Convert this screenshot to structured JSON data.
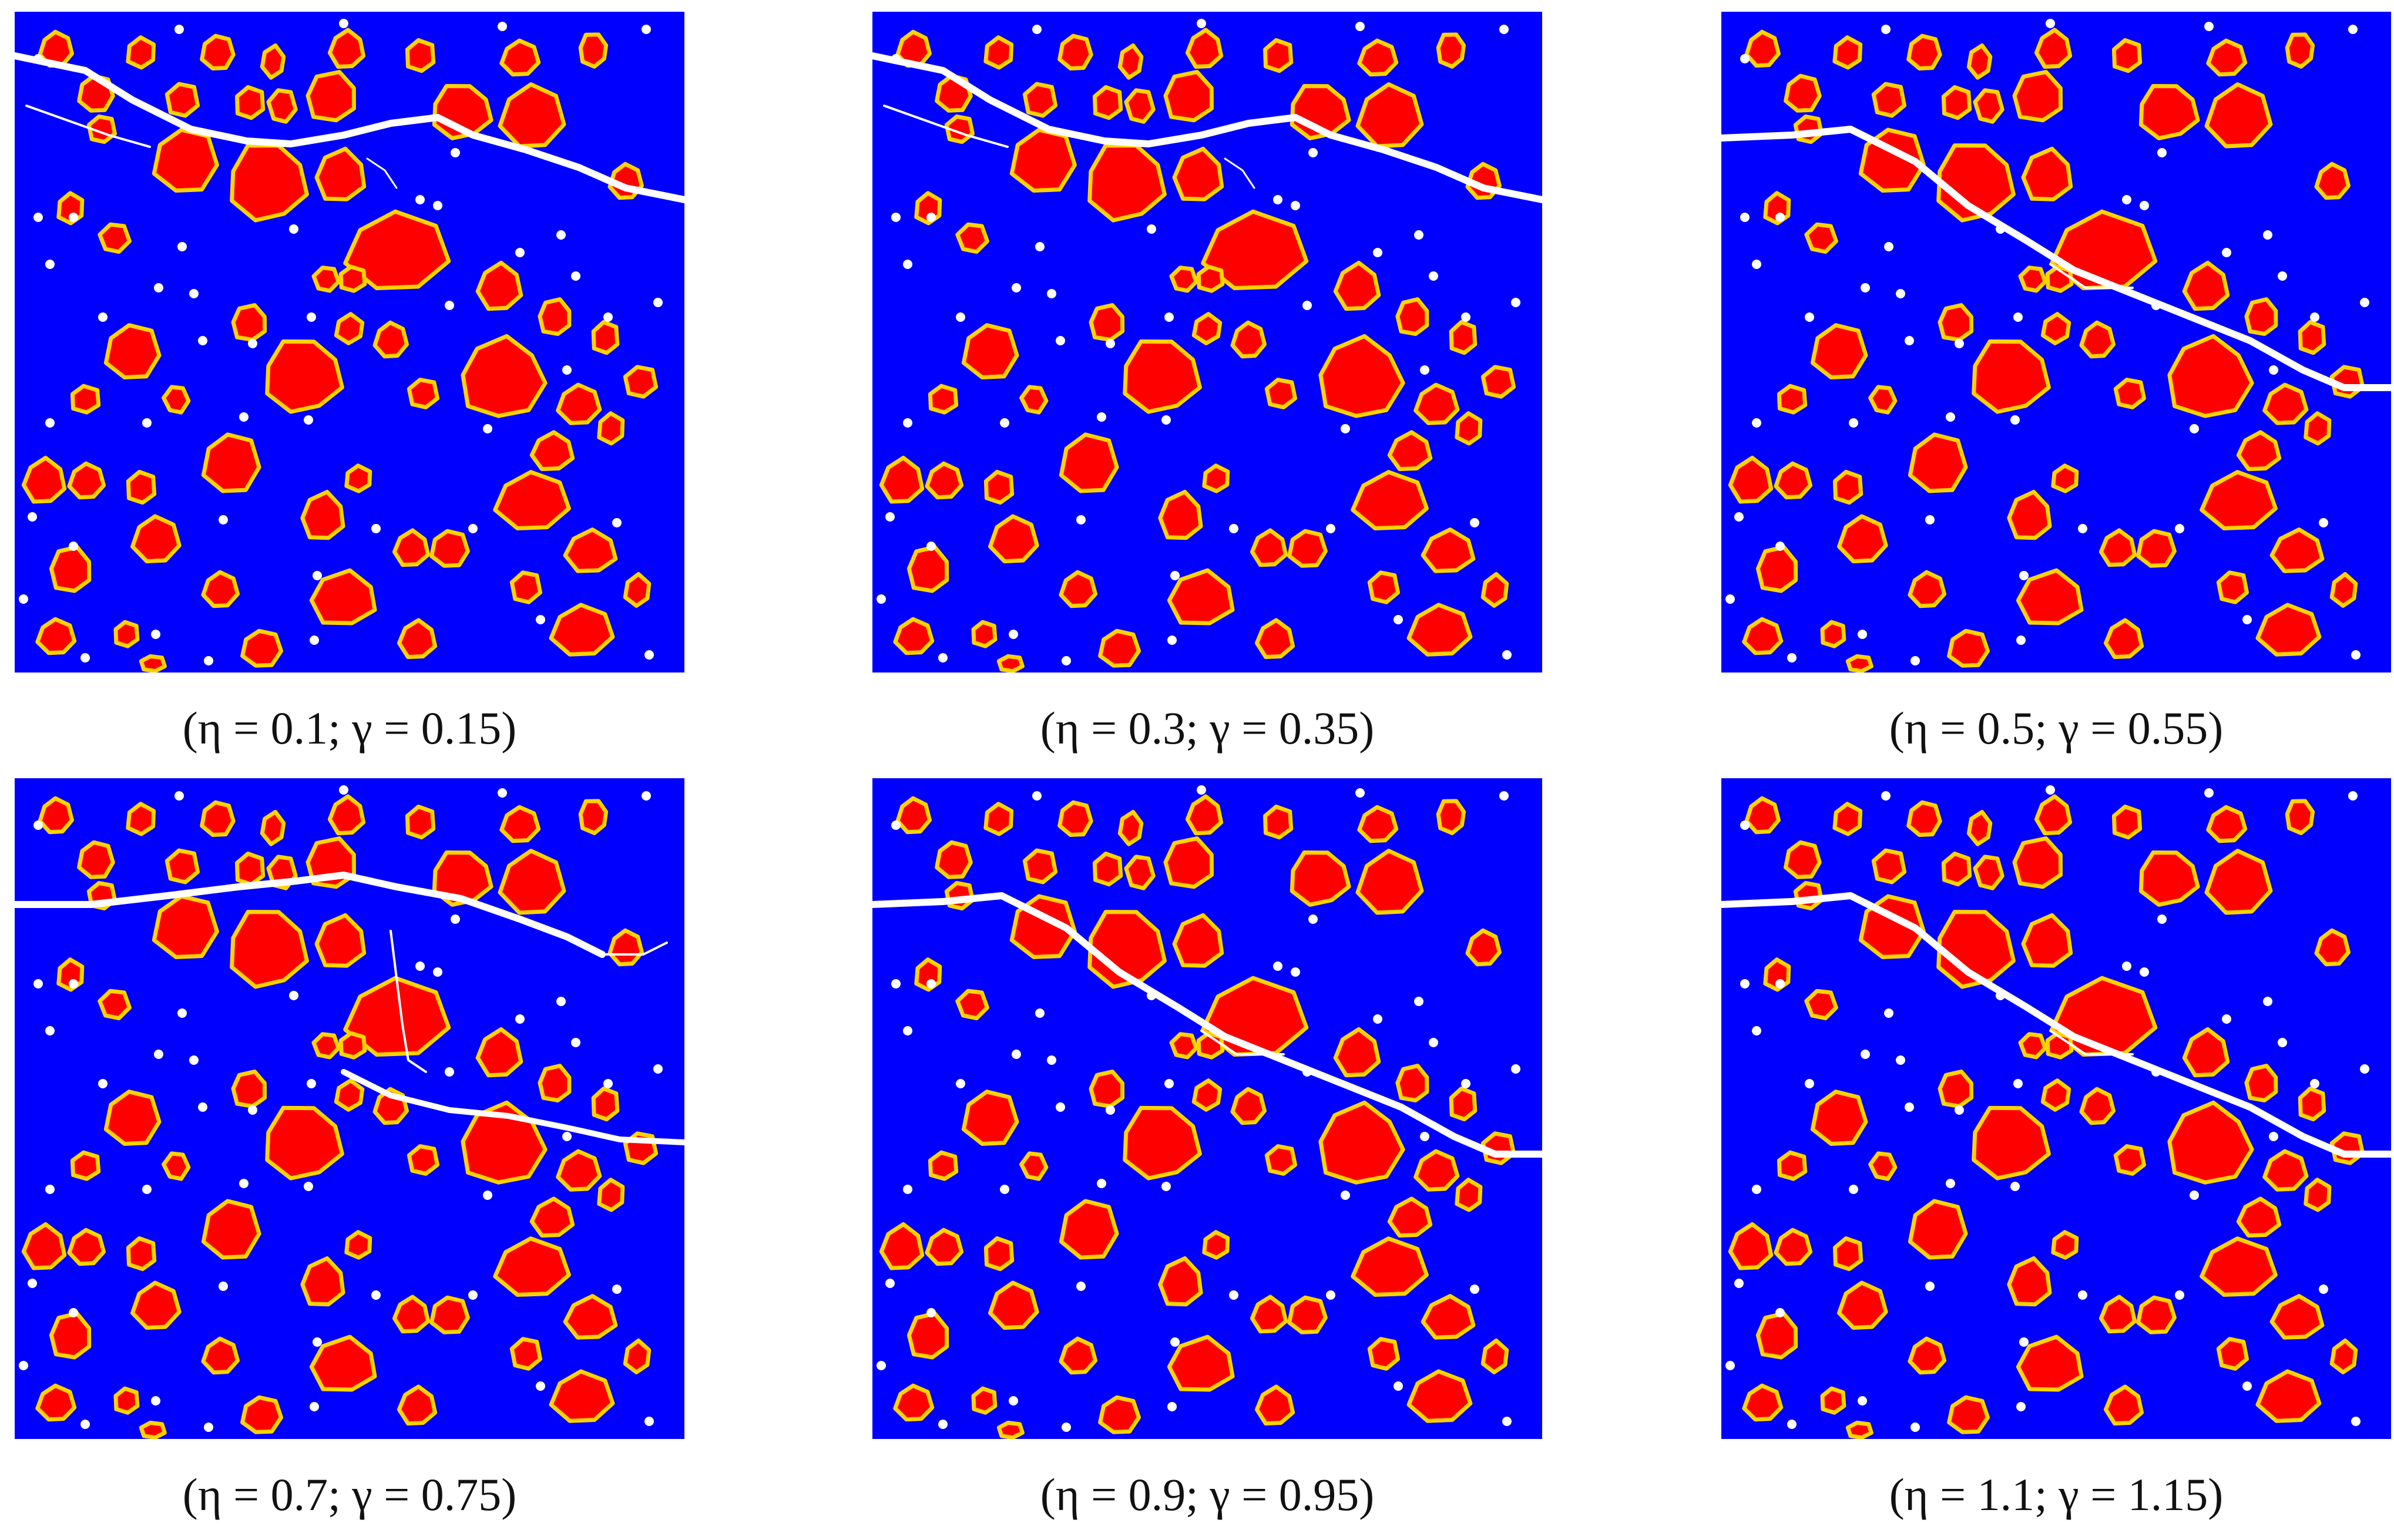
{
  "colors": {
    "matrix": "#0000ff",
    "aggregate": "#ff0000",
    "itz": "#ffd200",
    "pore_and_crack": "#ffffff"
  },
  "panels": [
    {
      "id": "p1",
      "eta": "0.1",
      "gamma": "0.15",
      "crack_pattern": "upper-horizontal-band"
    },
    {
      "id": "p2",
      "eta": "0.3",
      "gamma": "0.35",
      "crack_pattern": "upper-horizontal-band"
    },
    {
      "id": "p3",
      "eta": "0.5",
      "gamma": "0.55",
      "crack_pattern": "descending-diagonal"
    },
    {
      "id": "p4",
      "eta": "0.7",
      "gamma": "0.75",
      "crack_pattern": "branched"
    },
    {
      "id": "p5",
      "eta": "0.9",
      "gamma": "0.95",
      "crack_pattern": "descending-diagonal"
    },
    {
      "id": "p6",
      "eta": "1.1",
      "gamma": "1.15",
      "crack_pattern": "descending-diagonal"
    }
  ],
  "caption_parts": {
    "open": "(",
    "eta_symbol": "η",
    "equals": " = ",
    "separator": "; ",
    "gamma_symbol": "γ",
    "close": ")"
  }
}
